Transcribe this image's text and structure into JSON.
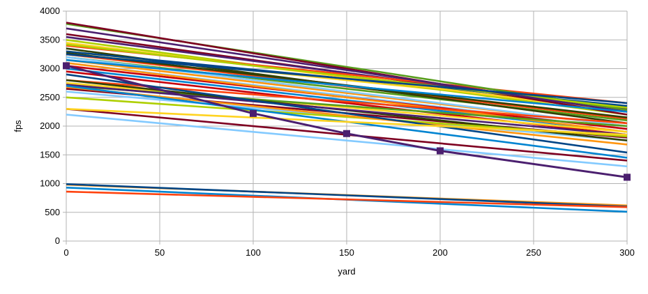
{
  "chart_data": {
    "type": "line",
    "title": "",
    "xlabel": "yard",
    "ylabel": "fps",
    "xlim": [
      0,
      300
    ],
    "ylim": [
      0,
      4000
    ],
    "x_ticks": [
      0,
      50,
      100,
      150,
      200,
      250,
      300
    ],
    "y_ticks": [
      0,
      500,
      1000,
      1500,
      2000,
      2500,
      3000,
      3500,
      4000
    ],
    "grid": true,
    "legend": "none",
    "series": [
      {
        "color": "#ff420e",
        "values": [
          3250,
          2130
        ]
      },
      {
        "color": "#ffd320",
        "values": [
          3300,
          2300
        ]
      },
      {
        "color": "#579d1c",
        "values": [
          3200,
          2100
        ]
      },
      {
        "color": "#7e0021",
        "values": [
          3600,
          2250
        ]
      },
      {
        "color": "#83caff",
        "values": [
          3100,
          1950
        ]
      },
      {
        "color": "#314004",
        "values": [
          3350,
          2050
        ]
      },
      {
        "color": "#aecf00",
        "values": [
          3500,
          2200
        ]
      },
      {
        "color": "#4b1f6f",
        "values": [
          3550,
          2300
        ]
      },
      {
        "color": "#ff950e",
        "values": [
          3150,
          2000
        ]
      },
      {
        "color": "#c5000b",
        "values": [
          3050,
          1950
        ]
      },
      {
        "color": "#0084d1",
        "values": [
          3000,
          1900
        ]
      },
      {
        "color": "#004586",
        "values": [
          3300,
          2350
        ]
      },
      {
        "color": "#ff420e",
        "values": [
          3400,
          2400
        ]
      },
      {
        "color": "#ffd320",
        "values": [
          3450,
          2250
        ]
      },
      {
        "color": "#579d1c",
        "values": [
          3780,
          2280
        ]
      },
      {
        "color": "#7e0021",
        "values": [
          3800,
          2200
        ]
      },
      {
        "color": "#83caff",
        "values": [
          3200,
          2000
        ]
      },
      {
        "color": "#314004",
        "values": [
          3270,
          2150
        ]
      },
      {
        "color": "#aecf00",
        "values": [
          3420,
          2320
        ]
      },
      {
        "color": "#4b1f6f",
        "values": [
          3700,
          2250
        ]
      },
      {
        "color": "#ff950e",
        "values": [
          3100,
          1900
        ]
      },
      {
        "color": "#c5000b",
        "values": [
          2950,
          1850
        ]
      },
      {
        "color": "#0084d1",
        "values": [
          3150,
          2250
        ]
      },
      {
        "color": "#004586",
        "values": [
          3250,
          2400
        ]
      },
      {
        "color": "#ff420e",
        "values": [
          2800,
          2050
        ]
      },
      {
        "color": "#ffd320",
        "values": [
          2750,
          1900
        ]
      },
      {
        "color": "#579d1c",
        "values": [
          2700,
          2000
        ]
      },
      {
        "color": "#7e0021",
        "values": [
          2650,
          1800
        ]
      },
      {
        "color": "#83caff",
        "values": [
          2600,
          1750
        ]
      },
      {
        "color": "#314004",
        "values": [
          2800,
          1750
        ]
      },
      {
        "color": "#aecf00",
        "values": [
          2500,
          1820
        ]
      },
      {
        "color": "#4b1f6f",
        "values": [
          2720,
          1850
        ]
      },
      {
        "color": "#ff950e",
        "values": [
          2680,
          1680
        ]
      },
      {
        "color": "#0084d1",
        "values": [
          2700,
          1450
        ]
      },
      {
        "color": "#004586",
        "values": [
          2900,
          1540
        ]
      },
      {
        "color": "#7e0021",
        "values": [
          2300,
          1400
        ]
      },
      {
        "color": "#ffd320",
        "values": [
          2300,
          1850
        ]
      },
      {
        "color": "#83caff",
        "values": [
          2200,
          1300
        ]
      },
      {
        "color": "#ff950e",
        "values": [
          980,
          620
        ]
      },
      {
        "color": "#004586",
        "values": [
          990,
          600
        ]
      },
      {
        "color": "#0084d1",
        "values": [
          930,
          510
        ]
      },
      {
        "color": "#ff420e",
        "values": [
          860,
          590
        ]
      },
      {
        "color": "#4b1f6f",
        "x": [
          0,
          100,
          150,
          200,
          300
        ],
        "values": [
          3050,
          2220,
          1870,
          1570,
          1110
        ],
        "markers": true
      }
    ]
  }
}
